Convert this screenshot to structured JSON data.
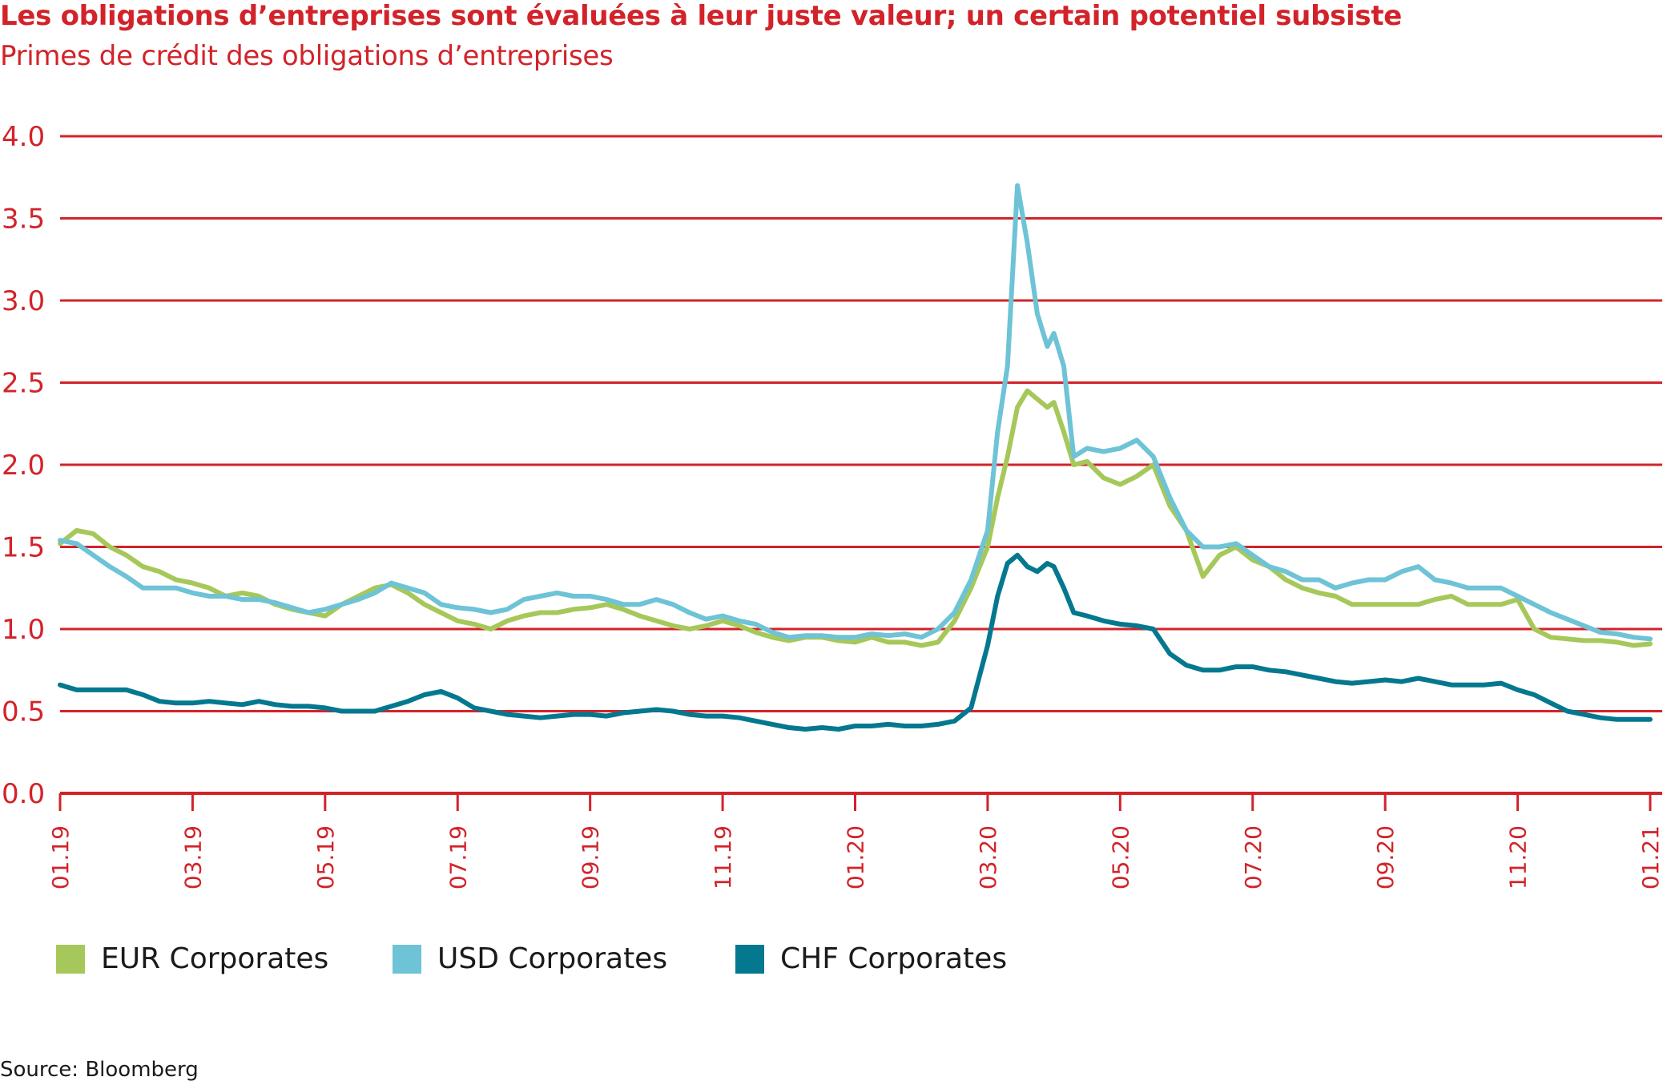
{
  "title": "Les obligations d’entreprises sont évaluées à leur juste valeur; un certain potentiel subsiste",
  "subtitle": "Primes de crédit des obligations d’entreprises",
  "source": "Source: Bloomberg",
  "colors": {
    "accent": "#d2232a",
    "eur": "#a6c85a",
    "usd": "#6ec3d6",
    "chf": "#04788f"
  },
  "chart_data": {
    "type": "line",
    "title": "Les obligations d’entreprises sont évaluées à leur juste valeur; un certain potentiel subsiste",
    "subtitle": "Primes de crédit des obligations d’entreprises",
    "xlabel": "",
    "ylabel": "",
    "ylim": [
      0,
      4
    ],
    "yticks": [
      "0.0",
      "0.5",
      "1.0",
      "1.5",
      "2.0",
      "2.5",
      "3.0",
      "3.5",
      "4.0"
    ],
    "xlim": [
      0,
      24
    ],
    "xticks": [
      "01.19",
      "03.19",
      "05.19",
      "07.19",
      "09.19",
      "11.19",
      "01.20",
      "03.20",
      "05.20",
      "07.20",
      "09.20",
      "11.20",
      "01.21"
    ],
    "grid": true,
    "legend_position": "bottom",
    "x_unit": "months since 01.19",
    "x": [
      0,
      0.25,
      0.5,
      0.75,
      1,
      1.25,
      1.5,
      1.75,
      2,
      2.25,
      2.5,
      2.75,
      3,
      3.25,
      3.5,
      3.75,
      4,
      4.25,
      4.5,
      4.75,
      5,
      5.25,
      5.5,
      5.75,
      6,
      6.25,
      6.5,
      6.75,
      7,
      7.25,
      7.5,
      7.75,
      8,
      8.25,
      8.5,
      8.75,
      9,
      9.25,
      9.5,
      9.75,
      10,
      10.25,
      10.5,
      10.75,
      11,
      11.25,
      11.5,
      11.75,
      12,
      12.25,
      12.5,
      12.75,
      13,
      13.25,
      13.5,
      13.75,
      14,
      14.15,
      14.3,
      14.45,
      14.6,
      14.75,
      14.9,
      15,
      15.15,
      15.3,
      15.5,
      15.75,
      16,
      16.25,
      16.5,
      16.75,
      17,
      17.25,
      17.5,
      17.75,
      18,
      18.25,
      18.5,
      18.75,
      19,
      19.25,
      19.5,
      19.75,
      20,
      20.25,
      20.5,
      20.75,
      21,
      21.25,
      21.5,
      21.75,
      22,
      22.25,
      22.5,
      22.75,
      23,
      23.25,
      23.5,
      23.75,
      24
    ],
    "series": [
      {
        "name": "EUR Corporates",
        "color": "#a6c85a",
        "values": [
          1.52,
          1.6,
          1.58,
          1.5,
          1.45,
          1.38,
          1.35,
          1.3,
          1.28,
          1.25,
          1.2,
          1.22,
          1.2,
          1.15,
          1.12,
          1.1,
          1.08,
          1.15,
          1.2,
          1.25,
          1.27,
          1.22,
          1.15,
          1.1,
          1.05,
          1.03,
          1.0,
          1.05,
          1.08,
          1.1,
          1.1,
          1.12,
          1.13,
          1.15,
          1.12,
          1.08,
          1.05,
          1.02,
          1.0,
          1.02,
          1.05,
          1.02,
          0.98,
          0.95,
          0.93,
          0.95,
          0.95,
          0.93,
          0.92,
          0.95,
          0.92,
          0.92,
          0.9,
          0.92,
          1.05,
          1.25,
          1.5,
          1.8,
          2.05,
          2.35,
          2.45,
          2.4,
          2.35,
          2.38,
          2.2,
          2.0,
          2.02,
          1.92,
          1.88,
          1.93,
          2.0,
          1.75,
          1.6,
          1.32,
          1.45,
          1.5,
          1.42,
          1.38,
          1.3,
          1.25,
          1.22,
          1.2,
          1.15,
          1.15,
          1.15,
          1.15,
          1.15,
          1.18,
          1.2,
          1.15,
          1.15,
          1.15,
          1.18,
          1.0,
          0.95,
          0.94,
          0.93,
          0.93,
          0.92,
          0.9,
          0.91
        ]
      },
      {
        "name": "USD Corporates",
        "color": "#6ec3d6",
        "values": [
          1.54,
          1.52,
          1.45,
          1.38,
          1.32,
          1.25,
          1.25,
          1.25,
          1.22,
          1.2,
          1.2,
          1.18,
          1.18,
          1.16,
          1.13,
          1.1,
          1.12,
          1.15,
          1.18,
          1.22,
          1.28,
          1.25,
          1.22,
          1.15,
          1.13,
          1.12,
          1.1,
          1.12,
          1.18,
          1.2,
          1.22,
          1.2,
          1.2,
          1.18,
          1.15,
          1.15,
          1.18,
          1.15,
          1.1,
          1.06,
          1.08,
          1.05,
          1.03,
          0.98,
          0.95,
          0.96,
          0.96,
          0.95,
          0.95,
          0.97,
          0.96,
          0.97,
          0.95,
          1.0,
          1.1,
          1.3,
          1.6,
          2.2,
          2.6,
          3.7,
          3.35,
          2.92,
          2.72,
          2.8,
          2.6,
          2.05,
          2.1,
          2.08,
          2.1,
          2.15,
          2.05,
          1.8,
          1.6,
          1.5,
          1.5,
          1.52,
          1.45,
          1.38,
          1.35,
          1.3,
          1.3,
          1.25,
          1.28,
          1.3,
          1.3,
          1.35,
          1.38,
          1.3,
          1.28,
          1.25,
          1.25,
          1.25,
          1.2,
          1.15,
          1.1,
          1.06,
          1.02,
          0.98,
          0.97,
          0.95,
          0.94
        ]
      },
      {
        "name": "CHF Corporates",
        "color": "#04788f",
        "values": [
          0.66,
          0.63,
          0.63,
          0.63,
          0.63,
          0.6,
          0.56,
          0.55,
          0.55,
          0.56,
          0.55,
          0.54,
          0.56,
          0.54,
          0.53,
          0.53,
          0.52,
          0.5,
          0.5,
          0.5,
          0.53,
          0.56,
          0.6,
          0.62,
          0.58,
          0.52,
          0.5,
          0.48,
          0.47,
          0.46,
          0.47,
          0.48,
          0.48,
          0.47,
          0.49,
          0.5,
          0.51,
          0.5,
          0.48,
          0.47,
          0.47,
          0.46,
          0.44,
          0.42,
          0.4,
          0.39,
          0.4,
          0.39,
          0.41,
          0.41,
          0.42,
          0.41,
          0.41,
          0.42,
          0.44,
          0.52,
          0.9,
          1.2,
          1.4,
          1.45,
          1.38,
          1.35,
          1.4,
          1.38,
          1.25,
          1.1,
          1.08,
          1.05,
          1.03,
          1.02,
          1.0,
          0.85,
          0.78,
          0.75,
          0.75,
          0.77,
          0.77,
          0.75,
          0.74,
          0.72,
          0.7,
          0.68,
          0.67,
          0.68,
          0.69,
          0.68,
          0.7,
          0.68,
          0.66,
          0.66,
          0.66,
          0.67,
          0.63,
          0.6,
          0.55,
          0.5,
          0.48,
          0.46,
          0.45,
          0.45,
          0.45
        ]
      }
    ]
  }
}
